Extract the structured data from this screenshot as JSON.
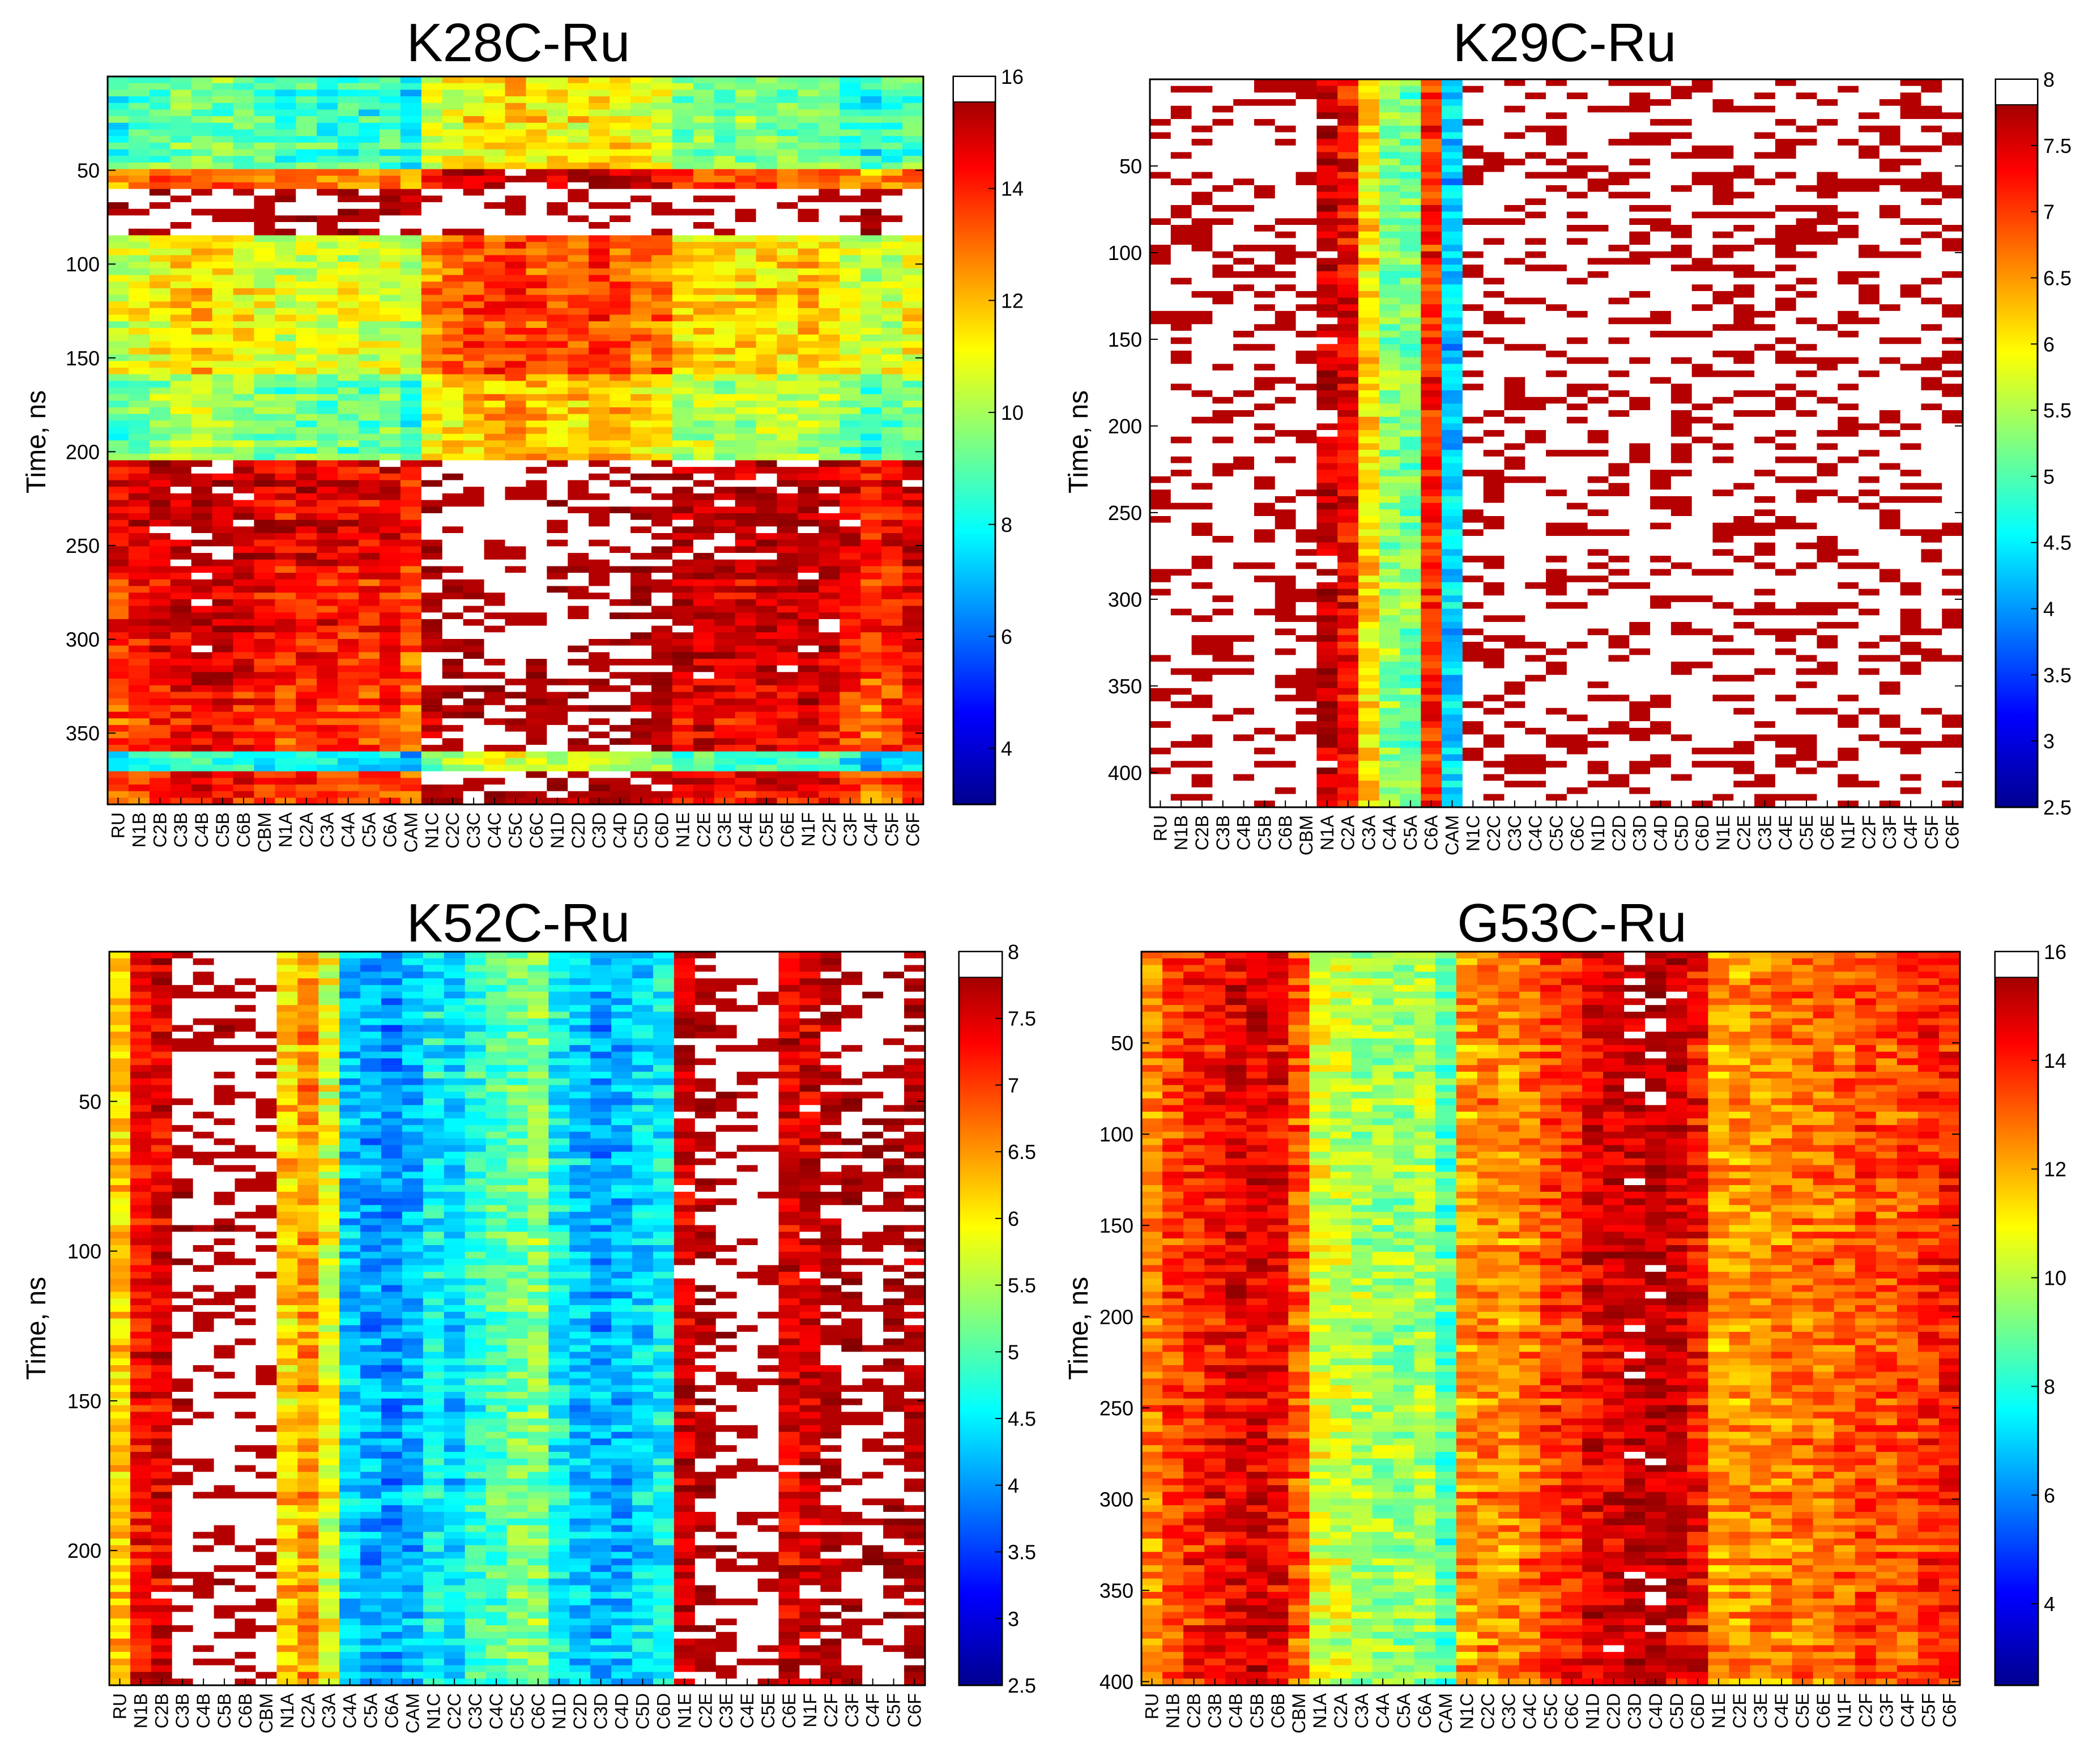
{
  "figure": {
    "colormap": "jet"
  },
  "chart_data": [
    {
      "type": "heatmap",
      "title": "K28C-Ru",
      "ylabel": "Time, ns",
      "xlabel": "",
      "ylim": [
        0,
        388
      ],
      "yticks": [
        50,
        100,
        150,
        200,
        250,
        300,
        350
      ],
      "clim": [
        3,
        16
      ],
      "cbar_ticks": [
        4,
        6,
        8,
        10,
        12,
        14,
        16
      ],
      "categories": [
        "RU",
        "N1B",
        "C2B",
        "C3B",
        "C4B",
        "C5B",
        "C6B",
        "CBM",
        "N1A",
        "C2A",
        "C3A",
        "C4A",
        "C5A",
        "C6A",
        "CAM",
        "N1C",
        "C2C",
        "C3C",
        "C4C",
        "C5C",
        "C6C",
        "N1D",
        "C2D",
        "C3D",
        "C4D",
        "C5D",
        "C6D",
        "N1E",
        "C2E",
        "C3E",
        "C4E",
        "C5E",
        "C6E",
        "N1F",
        "C2F",
        "C3F",
        "C4F",
        "C5F",
        "C6F"
      ],
      "column_mean": [
        10.5,
        10.8,
        11.2,
        11.5,
        11.8,
        11.5,
        11.3,
        10.8,
        10.5,
        10.8,
        10.6,
        10.6,
        10.4,
        10.8,
        9.8,
        12.6,
        13,
        13.4,
        13.6,
        13.8,
        13.5,
        13.2,
        13.2,
        13.6,
        13.3,
        13,
        12.8,
        11.6,
        11.8,
        11.6,
        11.4,
        11.8,
        11.5,
        11.8,
        11.5,
        10.8,
        10.2,
        10.6,
        11
      ],
      "row_segments": [
        {
          "t": [
            0,
            50
          ],
          "offset": -2
        },
        {
          "t": [
            50,
            60
          ],
          "offset": 2
        },
        {
          "t": [
            60,
            85
          ],
          "offset": 6
        },
        {
          "t": [
            85,
            160
          ],
          "offset": 0
        },
        {
          "t": [
            160,
            205
          ],
          "offset": -1.5
        },
        {
          "t": [
            205,
            260
          ],
          "offset": 4
        },
        {
          "t": [
            260,
            320
          ],
          "offset": 3.5
        },
        {
          "t": [
            320,
            360
          ],
          "offset": 3
        },
        {
          "t": [
            360,
            372
          ],
          "offset": -3
        },
        {
          "t": [
            372,
            388
          ],
          "offset": 3
        }
      ]
    },
    {
      "type": "heatmap",
      "title": "K29C-Ru",
      "ylabel": "Time, ns",
      "xlabel": "",
      "ylim": [
        0,
        420
      ],
      "yticks": [
        50,
        100,
        150,
        200,
        250,
        300,
        350,
        400
      ],
      "clim": [
        2.5,
        8
      ],
      "cbar_ticks": [
        2.5,
        3,
        3.5,
        4,
        4.5,
        5,
        5.5,
        6,
        6.5,
        7,
        7.5,
        8
      ],
      "categories": [
        "RU",
        "N1B",
        "C2B",
        "C3B",
        "C4B",
        "C5B",
        "C6B",
        "CBM",
        "N1A",
        "C2A",
        "C3A",
        "C4A",
        "C5A",
        "C6A",
        "CAM",
        "N1C",
        "C2C",
        "C3C",
        "C4C",
        "C5C",
        "C6C",
        "N1D",
        "C2D",
        "C3D",
        "C4D",
        "C5D",
        "C6D",
        "N1E",
        "C2E",
        "C3E",
        "C4E",
        "C5E",
        "C6E",
        "N1F",
        "C2F",
        "C3F",
        "C4F",
        "C5F",
        "C6F"
      ],
      "column_mean": [
        9,
        9,
        9,
        9,
        9,
        9,
        9,
        9,
        7.7,
        7.3,
        6.1,
        5.3,
        5.2,
        7.1,
        4.3,
        9,
        9,
        9,
        9,
        9,
        8.6,
        9,
        9,
        9,
        9,
        9,
        9,
        9,
        9,
        9,
        9,
        9,
        9,
        9,
        9,
        9,
        9,
        9,
        9
      ],
      "row_segments": [
        {
          "t": [
            0,
            420
          ],
          "offset": 0
        }
      ]
    },
    {
      "type": "heatmap",
      "title": "K52C-Ru",
      "ylabel": "Time, ns",
      "xlabel": "",
      "ylim": [
        0,
        245
      ],
      "yticks": [
        50,
        100,
        150,
        200
      ],
      "clim": [
        2.5,
        8
      ],
      "cbar_ticks": [
        2.5,
        3,
        3.5,
        4,
        4.5,
        5,
        5.5,
        6,
        6.5,
        7,
        7.5,
        8
      ],
      "categories": [
        "RU",
        "N1B",
        "C2B",
        "C3B",
        "C4B",
        "C5B",
        "C6B",
        "CBM",
        "N1A",
        "C2A",
        "C3A",
        "C4A",
        "C5A",
        "C6A",
        "CAM",
        "N1C",
        "C2C",
        "C3C",
        "C4C",
        "C5C",
        "C6C",
        "N1D",
        "C2D",
        "C3D",
        "C4D",
        "C5D",
        "C6D",
        "N1E",
        "C2E",
        "C3E",
        "C4E",
        "C5E",
        "C6E",
        "N1F",
        "C2F",
        "C3F",
        "C4F",
        "C5F",
        "C6F"
      ],
      "column_mean": [
        6.2,
        7.3,
        7.5,
        8.5,
        8.7,
        8.5,
        8.7,
        9,
        6.2,
        6.5,
        5.8,
        4.3,
        4.1,
        4,
        4.2,
        4.6,
        4.4,
        4.8,
        5,
        5.2,
        5.3,
        4.6,
        4.3,
        4.1,
        4.2,
        4.4,
        4.6,
        7.6,
        8,
        8.5,
        8.7,
        8.8,
        7.5,
        7.6,
        8,
        8.3,
        8.4,
        8.3,
        8
      ],
      "row_segments": [
        {
          "t": [
            0,
            245
          ],
          "offset": 0
        }
      ]
    },
    {
      "type": "heatmap",
      "title": "G53C-Ru",
      "ylabel": "Time, ns",
      "xlabel": "",
      "ylim": [
        0,
        402
      ],
      "yticks": [
        50,
        100,
        150,
        200,
        250,
        300,
        350,
        400
      ],
      "clim": [
        2.5,
        16
      ],
      "cbar_ticks": [
        4,
        6,
        8,
        10,
        12,
        14,
        16
      ],
      "categories": [
        "RU",
        "N1B",
        "C2B",
        "C3B",
        "C4B",
        "C5B",
        "C6B",
        "CBM",
        "N1A",
        "C2A",
        "C3A",
        "C4A",
        "C5A",
        "C6A",
        "CAM",
        "N1C",
        "C2C",
        "C3C",
        "C4C",
        "C5C",
        "C6C",
        "N1D",
        "C2D",
        "C3D",
        "C4D",
        "C5D",
        "C6D",
        "N1E",
        "C2E",
        "C3E",
        "C4E",
        "C5E",
        "C6E",
        "N1F",
        "C2F",
        "C3F",
        "C4F",
        "C5F",
        "C6F"
      ],
      "column_mean": [
        12.6,
        13.4,
        13.8,
        14.2,
        14.6,
        14.8,
        14.4,
        13.2,
        10.6,
        10.2,
        9.8,
        9.6,
        9.5,
        9.8,
        8.6,
        12.2,
        12.6,
        12.4,
        12.8,
        13.6,
        13.8,
        14.6,
        14.8,
        15.2,
        15.4,
        15,
        14.2,
        12.2,
        12.4,
        12.4,
        12.6,
        12.8,
        12.8,
        13,
        13.4,
        13.2,
        13.4,
        13.8,
        14
      ],
      "row_segments": [
        {
          "t": [
            0,
            402
          ],
          "offset": 0
        }
      ]
    }
  ]
}
